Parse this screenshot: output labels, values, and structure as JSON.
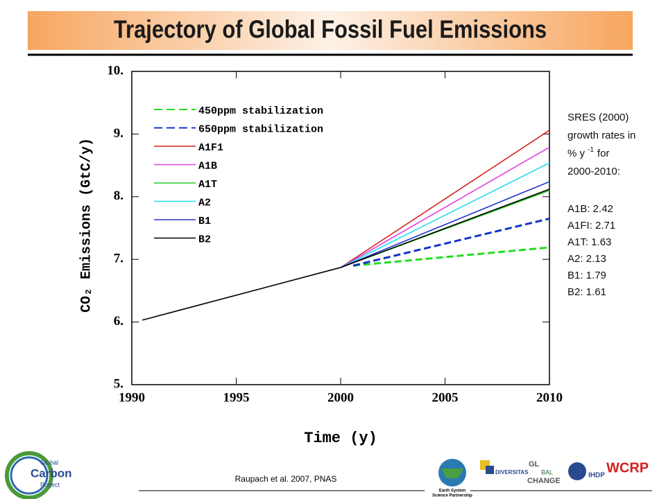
{
  "title": "Trajectory of Global Fossil Fuel Emissions",
  "chart_data": {
    "type": "line",
    "xlabel": "Time (y)",
    "ylabel": "CO₂ Emissions (GtC/y)",
    "xlim": [
      1990,
      2010
    ],
    "xticks": [
      1990,
      1995,
      2000,
      2005,
      2010
    ],
    "ylim": [
      5,
      10
    ],
    "yticks": [
      {
        "value": 5,
        "label": "5."
      },
      {
        "value": 6,
        "label": "6."
      },
      {
        "value": 7,
        "label": "7."
      },
      {
        "value": 8,
        "label": "8."
      },
      {
        "value": 9,
        "label": "9."
      },
      {
        "value": 10,
        "label": "10."
      }
    ],
    "legend": "upper left",
    "series": [
      {
        "name": "450ppm stabilization",
        "color": "#22dd22",
        "linestyle": "dashed",
        "x": [
          2000.6,
          2010
        ],
        "values": [
          6.9,
          7.19
        ]
      },
      {
        "name": "650ppm stabilization",
        "color": "#1133cc",
        "linestyle": "dashed",
        "x": [
          2000.6,
          2010
        ],
        "values": [
          6.9,
          7.65
        ]
      },
      {
        "name": "A1F1",
        "color": "#d42020",
        "linestyle": "solid",
        "x": [
          2000,
          2010
        ],
        "values": [
          6.87,
          9.06
        ]
      },
      {
        "name": "A1B",
        "color": "#e040e0",
        "linestyle": "solid",
        "x": [
          2000,
          2010
        ],
        "values": [
          6.87,
          8.79
        ]
      },
      {
        "name": "A1T",
        "color": "#22cc22",
        "linestyle": "solid",
        "x": [
          2000,
          2010
        ],
        "values": [
          6.87,
          8.1
        ]
      },
      {
        "name": "A2",
        "color": "#22ddee",
        "linestyle": "solid",
        "x": [
          2000,
          2010
        ],
        "values": [
          6.87,
          8.54
        ]
      },
      {
        "name": "B1",
        "color": "#2233cc",
        "linestyle": "solid",
        "x": [
          2000,
          2010
        ],
        "values": [
          6.87,
          8.24
        ]
      },
      {
        "name": "B2",
        "color": "#000000",
        "linestyle": "solid",
        "x": [
          1990.5,
          2000,
          2010
        ],
        "values": [
          6.03,
          6.87,
          8.12
        ]
      }
    ]
  },
  "annotation": {
    "heading": [
      "SRES (2000)",
      "growth rates in"
    ],
    "unit": "% y",
    "unit_exp": "-1",
    "unit_after": "for",
    "period": "2000-2010:",
    "rates": [
      "A1B: 2.42",
      "A1FI: 2.71",
      "A1T: 1.63",
      "A2: 2.13",
      "B1: 1.79",
      "B2: 1.61"
    ]
  },
  "footer": "Raupach et al. 2007, PNAS",
  "logos": {
    "gcp": [
      "Global",
      "Carbon",
      "Project"
    ],
    "essp": [
      "Earth System",
      "Science Partnership"
    ],
    "diversitas": "DIVERSITAS",
    "igbp": [
      "GL",
      "BAL",
      "CHANGE"
    ],
    "ihdp": "IHDP",
    "wcrp": "WCRP"
  }
}
